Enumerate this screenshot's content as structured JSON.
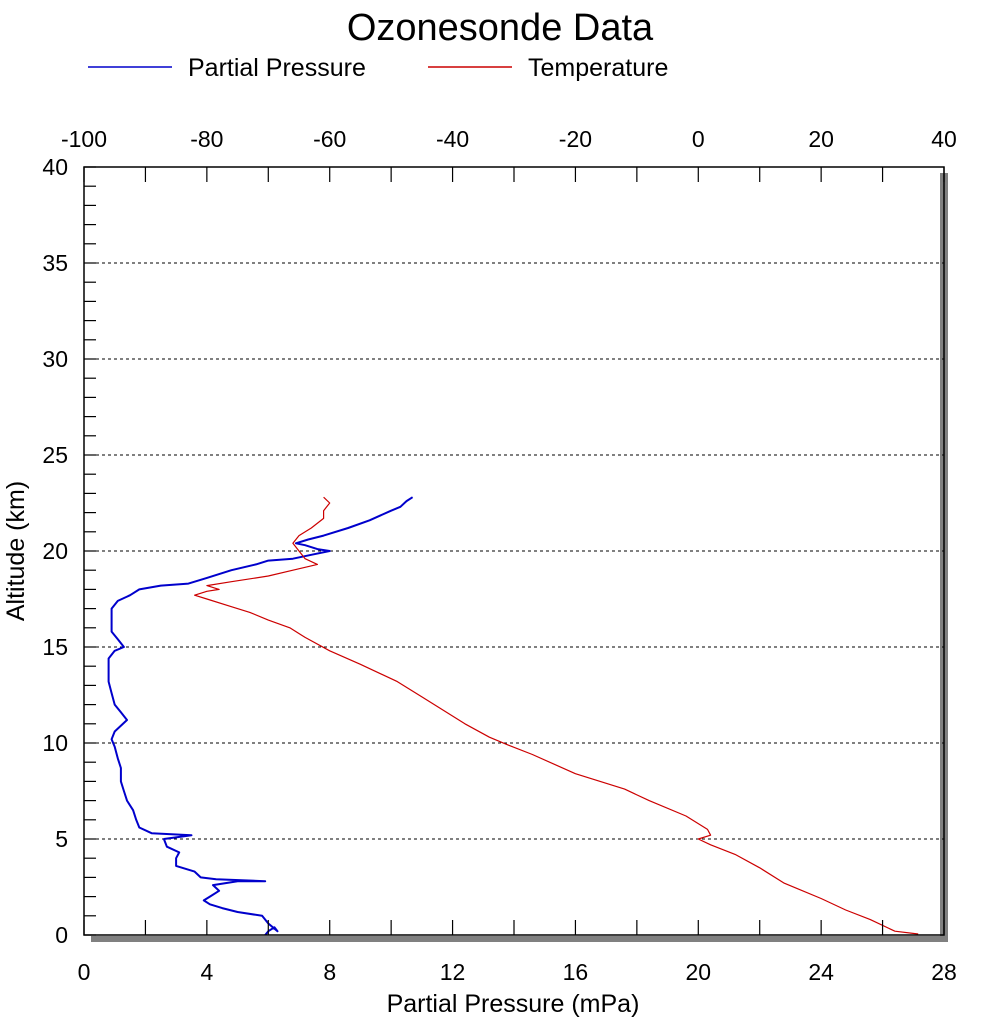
{
  "chart_data": {
    "type": "line",
    "title": "Ozonesonde Data",
    "xlabel": "Partial Pressure (mPa)",
    "ylabel": "Altitude (km)",
    "xlim": [
      0,
      28
    ],
    "ylim": [
      0,
      40
    ],
    "x2lim": [
      -100,
      40
    ],
    "x_ticks": [
      "0",
      "4",
      "8",
      "12",
      "16",
      "20",
      "24",
      "28"
    ],
    "x2_ticks": [
      "-100",
      "-80",
      "-60",
      "-40",
      "-20",
      "0",
      "20",
      "40"
    ],
    "y_ticks": [
      "0",
      "5",
      "10",
      "15",
      "20",
      "25",
      "30",
      "35",
      "40"
    ],
    "grid": "horizontal dashed",
    "legend": "top",
    "series": [
      {
        "name": "Partial Pressure",
        "axis": "bottom",
        "color": "#0000cc",
        "points": [
          [
            5.9,
            0
          ],
          [
            6.0,
            0.2
          ],
          [
            6.2,
            0.4
          ],
          [
            6.3,
            0.2
          ],
          [
            6.0,
            0.6
          ],
          [
            5.8,
            1.0
          ],
          [
            5.0,
            1.2
          ],
          [
            4.5,
            1.4
          ],
          [
            4.1,
            1.6
          ],
          [
            3.9,
            1.8
          ],
          [
            4.1,
            2.0
          ],
          [
            4.4,
            2.3
          ],
          [
            4.2,
            2.6
          ],
          [
            5.0,
            2.8
          ],
          [
            5.9,
            2.8
          ],
          [
            4.3,
            2.9
          ],
          [
            3.8,
            3.0
          ],
          [
            3.6,
            3.3
          ],
          [
            3.0,
            3.6
          ],
          [
            3.0,
            4.0
          ],
          [
            3.1,
            4.3
          ],
          [
            2.7,
            4.6
          ],
          [
            2.6,
            5.0
          ],
          [
            3.5,
            5.2
          ],
          [
            2.2,
            5.3
          ],
          [
            1.8,
            5.6
          ],
          [
            1.7,
            6.0
          ],
          [
            1.6,
            6.5
          ],
          [
            1.4,
            7.0
          ],
          [
            1.3,
            7.5
          ],
          [
            1.2,
            8.0
          ],
          [
            1.2,
            8.7
          ],
          [
            1.1,
            9.2
          ],
          [
            1.0,
            9.8
          ],
          [
            0.9,
            10.2
          ],
          [
            1.0,
            10.6
          ],
          [
            1.4,
            11.2
          ],
          [
            1.2,
            11.6
          ],
          [
            1.0,
            12.0
          ],
          [
            0.9,
            12.6
          ],
          [
            0.8,
            13.2
          ],
          [
            0.8,
            13.8
          ],
          [
            0.8,
            14.4
          ],
          [
            1.0,
            14.8
          ],
          [
            1.3,
            15.0
          ],
          [
            1.1,
            15.4
          ],
          [
            0.9,
            15.8
          ],
          [
            0.9,
            16.4
          ],
          [
            0.9,
            17.0
          ],
          [
            1.1,
            17.4
          ],
          [
            1.5,
            17.7
          ],
          [
            1.8,
            18.0
          ],
          [
            2.5,
            18.2
          ],
          [
            3.4,
            18.3
          ],
          [
            4.0,
            18.6
          ],
          [
            4.8,
            19.0
          ],
          [
            5.6,
            19.3
          ],
          [
            6.0,
            19.5
          ],
          [
            6.8,
            19.6
          ],
          [
            7.4,
            19.8
          ],
          [
            8.0,
            20.0
          ],
          [
            7.6,
            20.1
          ],
          [
            7.2,
            20.3
          ],
          [
            6.9,
            20.4
          ],
          [
            7.3,
            20.6
          ],
          [
            7.8,
            20.8
          ],
          [
            8.6,
            21.2
          ],
          [
            9.3,
            21.6
          ],
          [
            10.0,
            22.1
          ],
          [
            10.3,
            22.3
          ],
          [
            10.5,
            22.6
          ],
          [
            10.7,
            22.8
          ]
        ]
      },
      {
        "name": "Temperature",
        "axis": "top",
        "color": "#cc0000",
        "points": [
          [
            35.8,
            0.05
          ],
          [
            32.0,
            0.2
          ],
          [
            28.0,
            0.8
          ],
          [
            24.0,
            1.3
          ],
          [
            20.0,
            1.9
          ],
          [
            14.0,
            2.7
          ],
          [
            10.0,
            3.5
          ],
          [
            6.0,
            4.2
          ],
          [
            2.0,
            4.7
          ],
          [
            0.0,
            5.0
          ],
          [
            2.0,
            5.2
          ],
          [
            1.5,
            5.5
          ],
          [
            -2.0,
            6.2
          ],
          [
            -8.0,
            7.0
          ],
          [
            -12.0,
            7.6
          ],
          [
            -20.0,
            8.4
          ],
          [
            -27.0,
            9.4
          ],
          [
            -31.0,
            9.9
          ],
          [
            -34.0,
            10.3
          ],
          [
            -38.0,
            11.0
          ],
          [
            -42.0,
            11.8
          ],
          [
            -45.0,
            12.4
          ],
          [
            -49.0,
            13.2
          ],
          [
            -55.0,
            14.1
          ],
          [
            -60.0,
            14.8
          ],
          [
            -64.0,
            15.5
          ],
          [
            -66.5,
            16.0
          ],
          [
            -70.0,
            16.4
          ],
          [
            -73.0,
            16.8
          ],
          [
            -76.0,
            17.1
          ],
          [
            -80.0,
            17.5
          ],
          [
            -82.0,
            17.7
          ],
          [
            -80.0,
            17.9
          ],
          [
            -78.0,
            18.0
          ],
          [
            -80.0,
            18.2
          ],
          [
            -76.0,
            18.4
          ],
          [
            -70.0,
            18.7
          ],
          [
            -66.0,
            19.0
          ],
          [
            -62.0,
            19.3
          ],
          [
            -64.0,
            19.6
          ],
          [
            -65.0,
            20.0
          ],
          [
            -66.0,
            20.4
          ],
          [
            -65.0,
            20.8
          ],
          [
            -63.0,
            21.2
          ],
          [
            -61.0,
            21.7
          ],
          [
            -61.0,
            22.1
          ],
          [
            -60.0,
            22.5
          ],
          [
            -61.0,
            22.8
          ]
        ]
      }
    ]
  }
}
